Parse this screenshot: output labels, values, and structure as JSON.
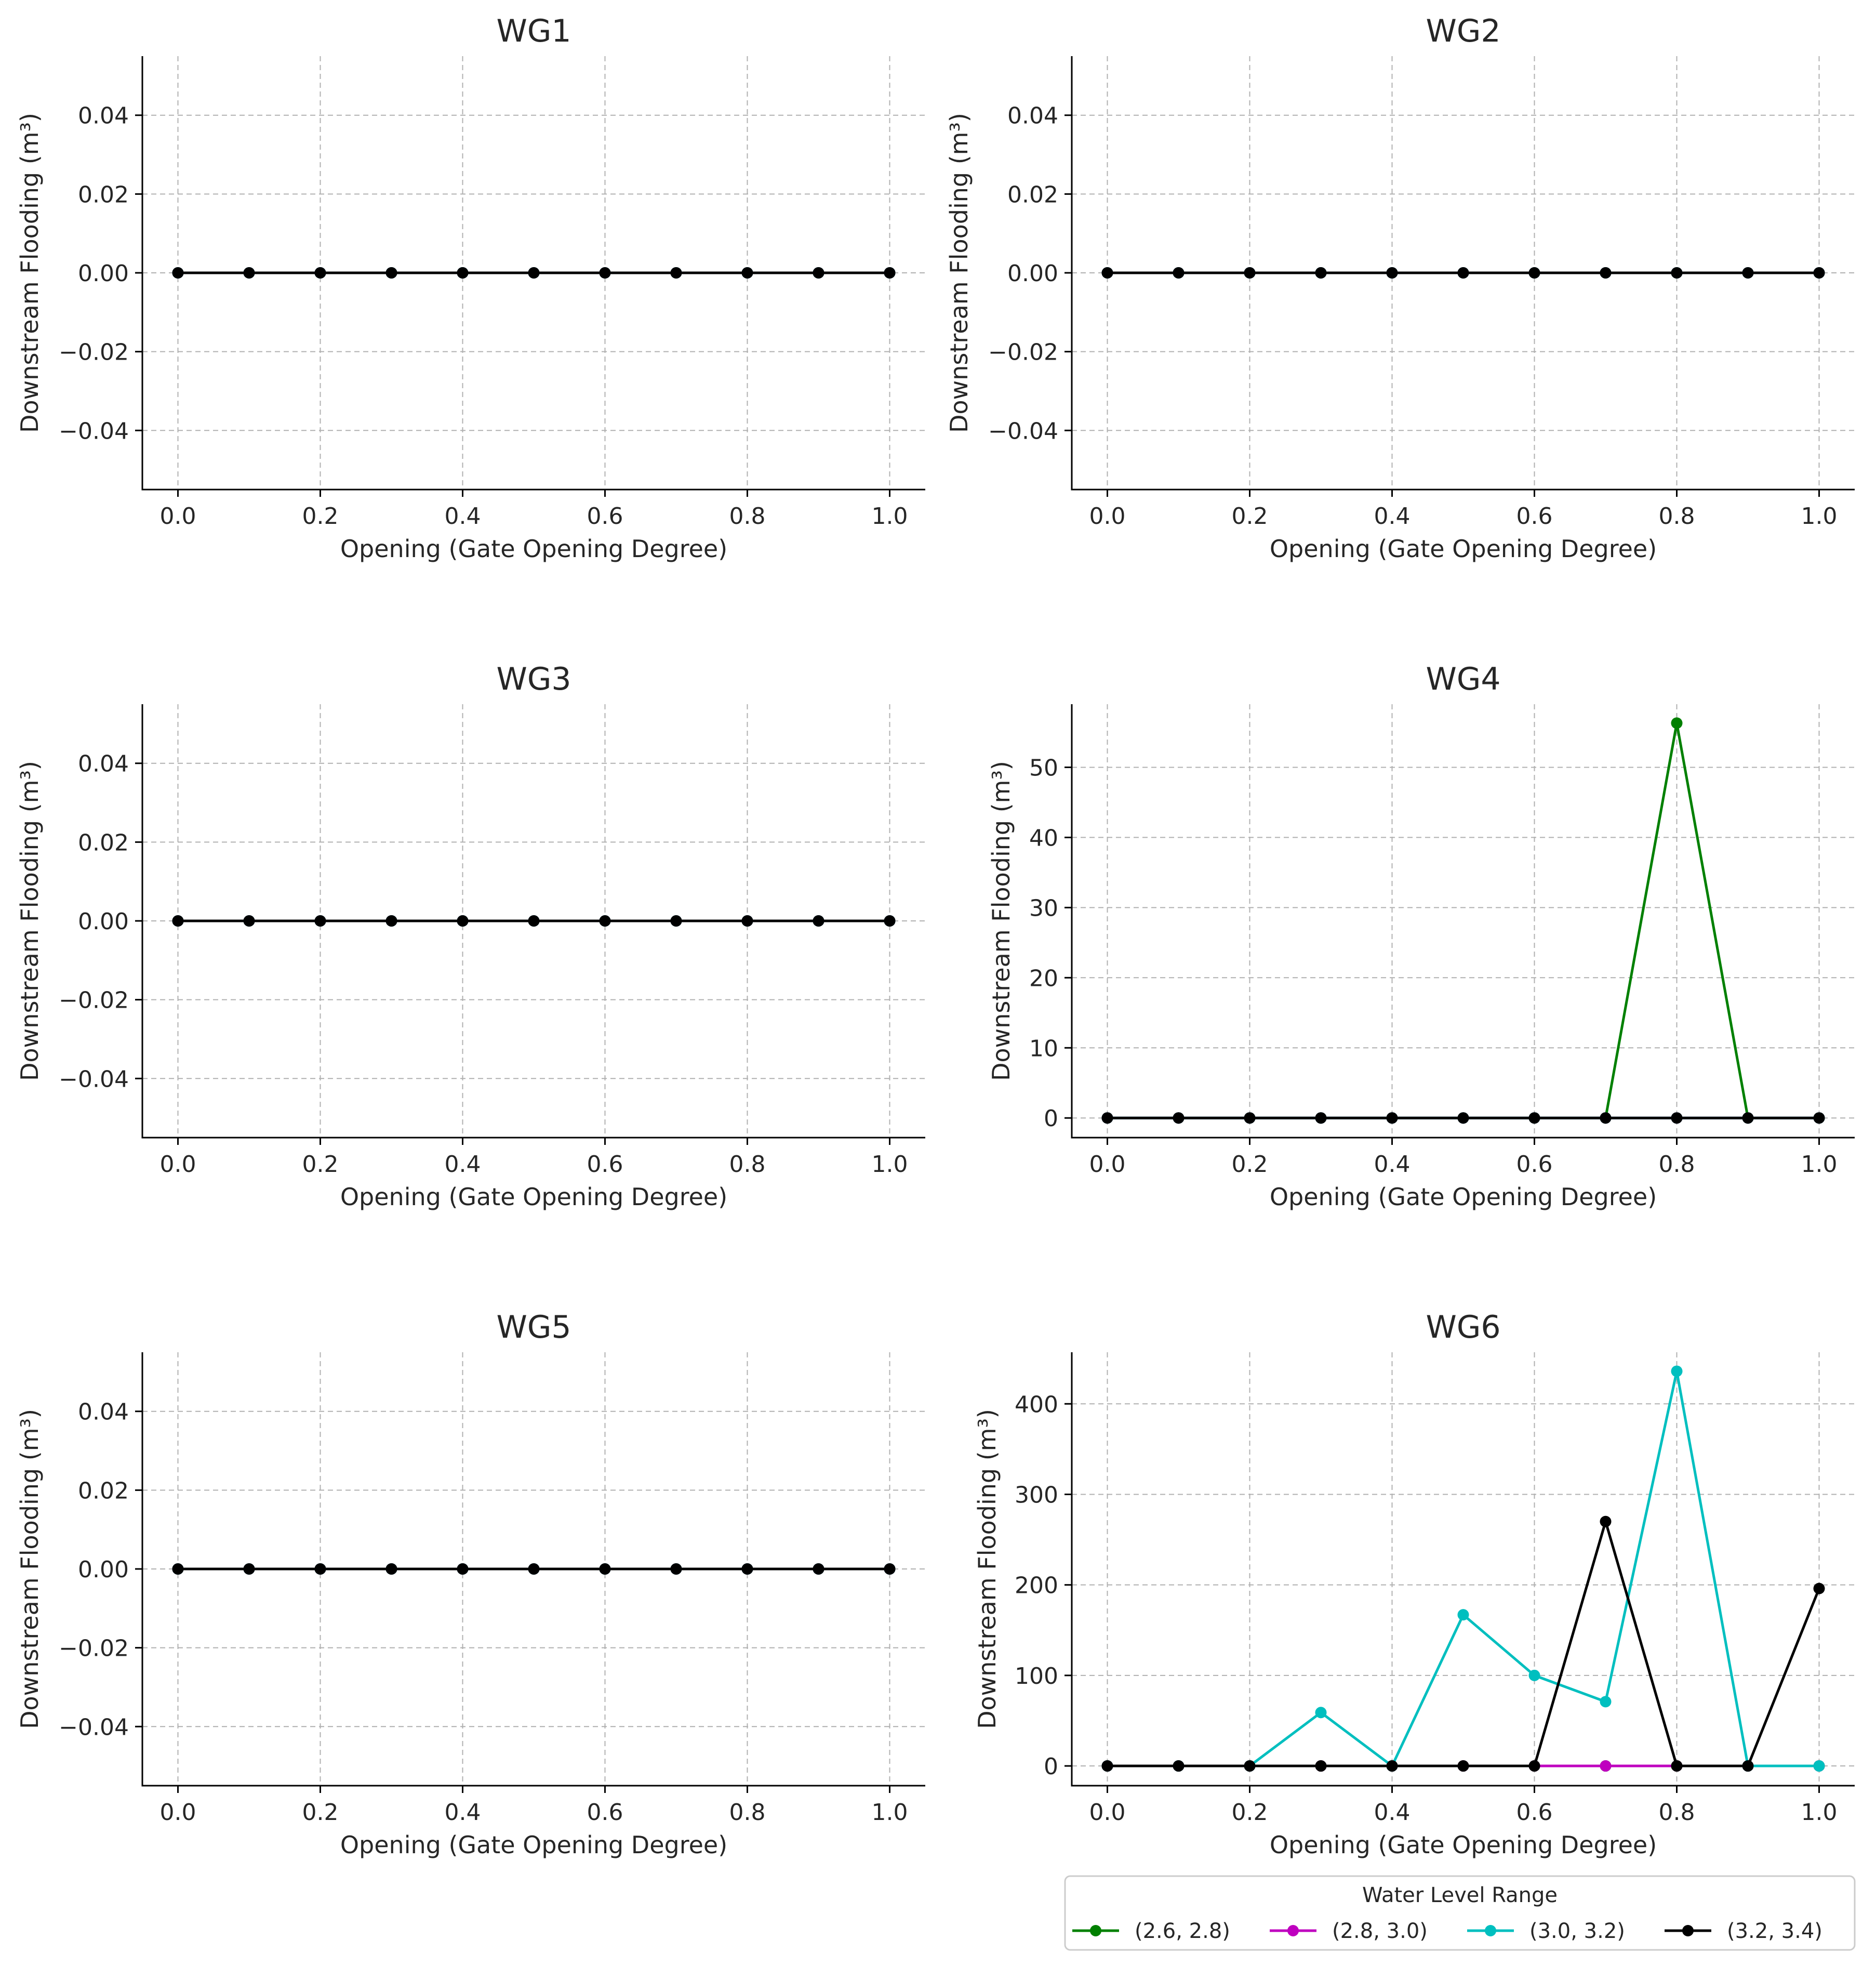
{
  "legend": {
    "title": "Water Level Range",
    "entries": [
      {
        "label": "(2.6, 2.8)",
        "color": "#008000"
      },
      {
        "label": "(2.8, 3.0)",
        "color": "#bf00bf"
      },
      {
        "label": "(3.0, 3.2)",
        "color": "#00bfbf"
      },
      {
        "label": "(3.2, 3.4)",
        "color": "#000000"
      }
    ]
  },
  "chart_data": [
    {
      "type": "line",
      "title": "WG1",
      "xlabel": "Opening (Gate Opening Degree)",
      "ylabel": "Downstream Flooding (m³)",
      "x": [
        0.0,
        0.1,
        0.2,
        0.3,
        0.4,
        0.5,
        0.6,
        0.7,
        0.8,
        0.9,
        1.0
      ],
      "xlim": [
        -0.05,
        1.05
      ],
      "ylim": [
        -0.055,
        0.055
      ],
      "xticks": [
        0.0,
        0.2,
        0.4,
        0.6,
        0.8,
        1.0
      ],
      "xtick_labels": [
        "0.0",
        "0.2",
        "0.4",
        "0.6",
        "0.8",
        "1.0"
      ],
      "yticks": [
        -0.04,
        -0.02,
        0.0,
        0.02,
        0.04
      ],
      "ytick_labels": [
        "−0.04",
        "−0.02",
        "0.00",
        "0.02",
        "0.04"
      ],
      "grid": true,
      "series": [
        {
          "color": "#008000",
          "values": [
            0,
            0,
            0,
            0,
            0,
            0,
            0,
            0,
            0,
            0,
            0
          ]
        },
        {
          "color": "#bf00bf",
          "values": [
            0,
            0,
            0,
            0,
            0,
            0,
            0,
            0,
            0,
            0,
            0
          ]
        },
        {
          "color": "#00bfbf",
          "values": [
            0,
            0,
            0,
            0,
            0,
            0,
            0,
            0,
            0,
            0,
            0
          ]
        },
        {
          "color": "#000000",
          "values": [
            0,
            0,
            0,
            0,
            0,
            0,
            0,
            0,
            0,
            0,
            0
          ]
        }
      ]
    },
    {
      "type": "line",
      "title": "WG2",
      "xlabel": "Opening (Gate Opening Degree)",
      "ylabel": "Downstream Flooding (m³)",
      "x": [
        0.0,
        0.1,
        0.2,
        0.3,
        0.4,
        0.5,
        0.6,
        0.7,
        0.8,
        0.9,
        1.0
      ],
      "xlim": [
        -0.05,
        1.05
      ],
      "ylim": [
        -0.055,
        0.055
      ],
      "xticks": [
        0.0,
        0.2,
        0.4,
        0.6,
        0.8,
        1.0
      ],
      "xtick_labels": [
        "0.0",
        "0.2",
        "0.4",
        "0.6",
        "0.8",
        "1.0"
      ],
      "yticks": [
        -0.04,
        -0.02,
        0.0,
        0.02,
        0.04
      ],
      "ytick_labels": [
        "−0.04",
        "−0.02",
        "0.00",
        "0.02",
        "0.04"
      ],
      "grid": true,
      "series": [
        {
          "color": "#008000",
          "values": [
            0,
            0,
            0,
            0,
            0,
            0,
            0,
            0,
            0,
            0,
            0
          ]
        },
        {
          "color": "#bf00bf",
          "values": [
            0,
            0,
            0,
            0,
            0,
            0,
            0,
            0,
            0,
            0,
            0
          ]
        },
        {
          "color": "#00bfbf",
          "values": [
            0,
            0,
            0,
            0,
            0,
            0,
            0,
            0,
            0,
            0,
            0
          ]
        },
        {
          "color": "#000000",
          "values": [
            0,
            0,
            0,
            0,
            0,
            0,
            0,
            0,
            0,
            0,
            0
          ]
        }
      ]
    },
    {
      "type": "line",
      "title": "WG3",
      "xlabel": "Opening (Gate Opening Degree)",
      "ylabel": "Downstream Flooding (m³)",
      "x": [
        0.0,
        0.1,
        0.2,
        0.3,
        0.4,
        0.5,
        0.6,
        0.7,
        0.8,
        0.9,
        1.0
      ],
      "xlim": [
        -0.05,
        1.05
      ],
      "ylim": [
        -0.055,
        0.055
      ],
      "xticks": [
        0.0,
        0.2,
        0.4,
        0.6,
        0.8,
        1.0
      ],
      "xtick_labels": [
        "0.0",
        "0.2",
        "0.4",
        "0.6",
        "0.8",
        "1.0"
      ],
      "yticks": [
        -0.04,
        -0.02,
        0.0,
        0.02,
        0.04
      ],
      "ytick_labels": [
        "−0.04",
        "−0.02",
        "0.00",
        "0.02",
        "0.04"
      ],
      "grid": true,
      "series": [
        {
          "color": "#008000",
          "values": [
            0,
            0,
            0,
            0,
            0,
            0,
            0,
            0,
            0,
            0,
            0
          ]
        },
        {
          "color": "#bf00bf",
          "values": [
            0,
            0,
            0,
            0,
            0,
            0,
            0,
            0,
            0,
            0,
            0
          ]
        },
        {
          "color": "#00bfbf",
          "values": [
            0,
            0,
            0,
            0,
            0,
            0,
            0,
            0,
            0,
            0,
            0
          ]
        },
        {
          "color": "#000000",
          "values": [
            0,
            0,
            0,
            0,
            0,
            0,
            0,
            0,
            0,
            0,
            0
          ]
        }
      ]
    },
    {
      "type": "line",
      "title": "WG4",
      "xlabel": "Opening (Gate Opening Degree)",
      "ylabel": "Downstream Flooding (m³)",
      "x": [
        0.0,
        0.1,
        0.2,
        0.3,
        0.4,
        0.5,
        0.6,
        0.7,
        0.8,
        0.9,
        1.0
      ],
      "xlim": [
        -0.05,
        1.05
      ],
      "ylim": [
        -2.8,
        59.0
      ],
      "xticks": [
        0.0,
        0.2,
        0.4,
        0.6,
        0.8,
        1.0
      ],
      "xtick_labels": [
        "0.0",
        "0.2",
        "0.4",
        "0.6",
        "0.8",
        "1.0"
      ],
      "yticks": [
        0,
        10,
        20,
        30,
        40,
        50
      ],
      "ytick_labels": [
        "0",
        "10",
        "20",
        "30",
        "40",
        "50"
      ],
      "grid": true,
      "series": [
        {
          "color": "#008000",
          "values": [
            0,
            0,
            0,
            0,
            0,
            0,
            0,
            0,
            56.3,
            0,
            0
          ]
        },
        {
          "color": "#bf00bf",
          "values": [
            0,
            0,
            0,
            0,
            0,
            0,
            0,
            0,
            0,
            0,
            0
          ]
        },
        {
          "color": "#00bfbf",
          "values": [
            0,
            0,
            0,
            0,
            0,
            0,
            0,
            0,
            0,
            0,
            0
          ]
        },
        {
          "color": "#000000",
          "values": [
            0,
            0,
            0,
            0,
            0,
            0,
            0,
            0,
            0,
            0,
            0
          ]
        }
      ]
    },
    {
      "type": "line",
      "title": "WG5",
      "xlabel": "Opening (Gate Opening Degree)",
      "ylabel": "Downstream Flooding (m³)",
      "x": [
        0.0,
        0.1,
        0.2,
        0.3,
        0.4,
        0.5,
        0.6,
        0.7,
        0.8,
        0.9,
        1.0
      ],
      "xlim": [
        -0.05,
        1.05
      ],
      "ylim": [
        -0.055,
        0.055
      ],
      "xticks": [
        0.0,
        0.2,
        0.4,
        0.6,
        0.8,
        1.0
      ],
      "xtick_labels": [
        "0.0",
        "0.2",
        "0.4",
        "0.6",
        "0.8",
        "1.0"
      ],
      "yticks": [
        -0.04,
        -0.02,
        0.0,
        0.02,
        0.04
      ],
      "ytick_labels": [
        "−0.04",
        "−0.02",
        "0.00",
        "0.02",
        "0.04"
      ],
      "grid": true,
      "series": [
        {
          "color": "#008000",
          "values": [
            0,
            0,
            0,
            0,
            0,
            0,
            0,
            0,
            0,
            0,
            0
          ]
        },
        {
          "color": "#bf00bf",
          "values": [
            0,
            0,
            0,
            0,
            0,
            0,
            0,
            0,
            0,
            0,
            0
          ]
        },
        {
          "color": "#00bfbf",
          "values": [
            0,
            0,
            0,
            0,
            0,
            0,
            0,
            0,
            0,
            0,
            0
          ]
        },
        {
          "color": "#000000",
          "values": [
            0,
            0,
            0,
            0,
            0,
            0,
            0,
            0,
            0,
            0,
            0
          ]
        }
      ]
    },
    {
      "type": "line",
      "title": "WG6",
      "xlabel": "Opening (Gate Opening Degree)",
      "ylabel": "Downstream Flooding (m³)",
      "x": [
        0.0,
        0.1,
        0.2,
        0.3,
        0.4,
        0.5,
        0.6,
        0.7,
        0.8,
        0.9,
        1.0
      ],
      "xlim": [
        -0.05,
        1.05
      ],
      "ylim": [
        -21.8,
        457.0
      ],
      "xticks": [
        0.0,
        0.2,
        0.4,
        0.6,
        0.8,
        1.0
      ],
      "xtick_labels": [
        "0.0",
        "0.2",
        "0.4",
        "0.6",
        "0.8",
        "1.0"
      ],
      "yticks": [
        0,
        100,
        200,
        300,
        400
      ],
      "ytick_labels": [
        "0",
        "100",
        "200",
        "300",
        "400"
      ],
      "grid": true,
      "series": [
        {
          "color": "#008000",
          "values": [
            0,
            0,
            0,
            0,
            0,
            0,
            0,
            0,
            0,
            0,
            0
          ]
        },
        {
          "color": "#bf00bf",
          "values": [
            0,
            0,
            0,
            0,
            0,
            0,
            0,
            0,
            0,
            0,
            0
          ]
        },
        {
          "color": "#00bfbf",
          "values": [
            0,
            0,
            0,
            59,
            0,
            167,
            100,
            71,
            436,
            0,
            0
          ]
        },
        {
          "color": "#000000",
          "values": [
            0,
            0,
            0,
            0,
            0,
            0,
            0,
            270,
            0,
            0,
            196
          ]
        }
      ]
    }
  ]
}
